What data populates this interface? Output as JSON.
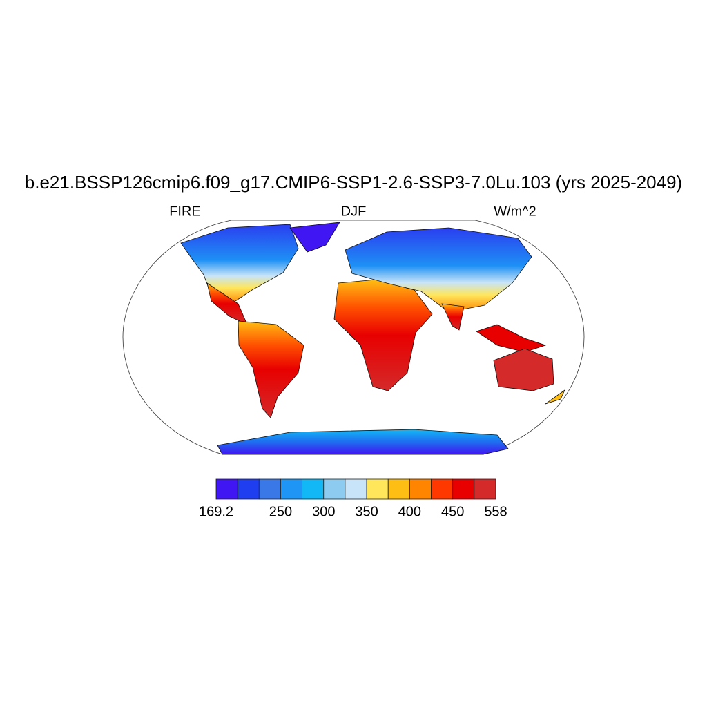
{
  "title": "b.e21.BSSP126cmip6.f09_g17.CMIP6-SSP1-2.6-SSP3-7.0Lu.103 (yrs 2025-2049)",
  "left_label": "FIRE",
  "center_label": "DJF",
  "right_label": "W/m^2",
  "colorbar": {
    "colors": [
      "#4016f2",
      "#1f3ef0",
      "#3a78e8",
      "#1f96f5",
      "#12b8f5",
      "#8ecbf0",
      "#c8e4f8",
      "#ffe65a",
      "#ffbe14",
      "#ff8400",
      "#ff3800",
      "#e80000",
      "#d42a2a"
    ],
    "ticks": [
      169.2,
      250,
      300,
      350,
      400,
      450,
      558
    ]
  }
}
